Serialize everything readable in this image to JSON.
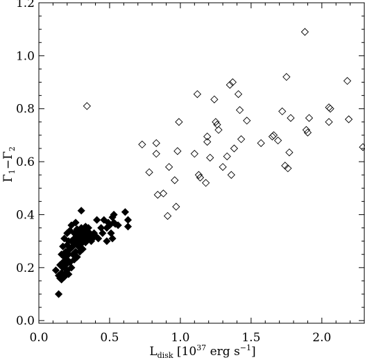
{
  "chart_data": {
    "type": "scatter",
    "xlabel": {
      "main": "L",
      "sub": "disk",
      "rest": " [10",
      "sup": "37",
      "units": " erg s",
      "sup2": "−1",
      "close": "]"
    },
    "ylabel": {
      "a": "Γ",
      "a_sub": "1",
      "dash": "−",
      "b": "Γ",
      "b_sub": "2"
    },
    "xlim": [
      0.0,
      2.3
    ],
    "ylim": [
      -0.01,
      1.2
    ],
    "x_ticks": [
      0.0,
      0.5,
      1.0,
      1.5,
      2.0
    ],
    "x_tick_labels": [
      "0.0",
      "0.5",
      "1.0",
      "1.5",
      "2.0"
    ],
    "y_ticks": [
      0.0,
      0.2,
      0.4,
      0.6,
      0.8,
      1.0,
      1.2
    ],
    "y_tick_labels": [
      "0.0",
      "0.2",
      "0.4",
      "0.6",
      "0.8",
      "1.0",
      "1.2"
    ],
    "grid": false,
    "legend": "none",
    "series": [
      {
        "marker": "diamond-open",
        "color": "#000000",
        "points": [
          [
            0.34,
            0.81
          ],
          [
            0.73,
            0.665
          ],
          [
            0.78,
            0.56
          ],
          [
            0.83,
            0.67
          ],
          [
            0.83,
            0.63
          ],
          [
            0.84,
            0.475
          ],
          [
            0.88,
            0.48
          ],
          [
            0.91,
            0.395
          ],
          [
            0.92,
            0.58
          ],
          [
            0.96,
            0.53
          ],
          [
            0.97,
            0.43
          ],
          [
            0.98,
            0.64
          ],
          [
            0.99,
            0.75
          ],
          [
            1.1,
            0.63
          ],
          [
            1.12,
            0.855
          ],
          [
            1.13,
            0.55
          ],
          [
            1.14,
            0.54
          ],
          [
            1.18,
            0.52
          ],
          [
            1.19,
            0.695
          ],
          [
            1.19,
            0.675
          ],
          [
            1.21,
            0.615
          ],
          [
            1.24,
            0.835
          ],
          [
            1.25,
            0.75
          ],
          [
            1.26,
            0.74
          ],
          [
            1.27,
            0.72
          ],
          [
            1.3,
            0.58
          ],
          [
            1.33,
            0.62
          ],
          [
            1.35,
            0.89
          ],
          [
            1.36,
            0.55
          ],
          [
            1.37,
            0.9
          ],
          [
            1.38,
            0.65
          ],
          [
            1.41,
            0.855
          ],
          [
            1.42,
            0.795
          ],
          [
            1.43,
            0.685
          ],
          [
            1.47,
            0.755
          ],
          [
            1.57,
            0.67
          ],
          [
            1.65,
            0.695
          ],
          [
            1.66,
            0.7
          ],
          [
            1.69,
            0.68
          ],
          [
            1.72,
            0.79
          ],
          [
            1.74,
            0.585
          ],
          [
            1.75,
            0.92
          ],
          [
            1.76,
            0.575
          ],
          [
            1.77,
            0.635
          ],
          [
            1.78,
            0.765
          ],
          [
            1.88,
            1.09
          ],
          [
            1.89,
            0.72
          ],
          [
            1.9,
            0.71
          ],
          [
            1.91,
            0.765
          ],
          [
            2.05,
            0.805
          ],
          [
            2.06,
            0.8
          ],
          [
            2.05,
            0.75
          ],
          [
            2.18,
            0.905
          ],
          [
            2.19,
            0.76
          ],
          [
            2.29,
            0.655
          ]
        ]
      },
      {
        "marker": "diamond-filled",
        "color": "#000000",
        "points": [
          [
            0.12,
            0.19
          ],
          [
            0.14,
            0.1
          ],
          [
            0.14,
            0.17
          ],
          [
            0.15,
            0.16
          ],
          [
            0.15,
            0.21
          ],
          [
            0.16,
            0.18
          ],
          [
            0.16,
            0.25
          ],
          [
            0.16,
            0.155
          ],
          [
            0.17,
            0.22
          ],
          [
            0.17,
            0.28
          ],
          [
            0.17,
            0.2
          ],
          [
            0.18,
            0.165
          ],
          [
            0.18,
            0.24
          ],
          [
            0.18,
            0.31
          ],
          [
            0.19,
            0.18
          ],
          [
            0.19,
            0.26
          ],
          [
            0.19,
            0.21
          ],
          [
            0.2,
            0.33
          ],
          [
            0.2,
            0.23
          ],
          [
            0.2,
            0.19
          ],
          [
            0.2,
            0.285
          ],
          [
            0.21,
            0.25
          ],
          [
            0.21,
            0.3
          ],
          [
            0.21,
            0.175
          ],
          [
            0.22,
            0.34
          ],
          [
            0.22,
            0.27
          ],
          [
            0.22,
            0.22
          ],
          [
            0.23,
            0.36
          ],
          [
            0.23,
            0.3
          ],
          [
            0.23,
            0.2
          ],
          [
            0.24,
            0.28
          ],
          [
            0.24,
            0.25
          ],
          [
            0.25,
            0.33
          ],
          [
            0.25,
            0.31
          ],
          [
            0.25,
            0.23
          ],
          [
            0.26,
            0.37
          ],
          [
            0.26,
            0.29
          ],
          [
            0.26,
            0.26
          ],
          [
            0.27,
            0.32
          ],
          [
            0.27,
            0.24
          ],
          [
            0.27,
            0.345
          ],
          [
            0.28,
            0.3
          ],
          [
            0.28,
            0.28
          ],
          [
            0.29,
            0.33
          ],
          [
            0.29,
            0.31
          ],
          [
            0.29,
            0.26
          ],
          [
            0.3,
            0.415
          ],
          [
            0.3,
            0.35
          ],
          [
            0.3,
            0.29
          ],
          [
            0.31,
            0.32
          ],
          [
            0.31,
            0.3
          ],
          [
            0.31,
            0.27
          ],
          [
            0.32,
            0.34
          ],
          [
            0.32,
            0.31
          ],
          [
            0.33,
            0.355
          ],
          [
            0.33,
            0.325
          ],
          [
            0.33,
            0.295
          ],
          [
            0.34,
            0.33
          ],
          [
            0.34,
            0.305
          ],
          [
            0.35,
            0.35
          ],
          [
            0.35,
            0.31
          ],
          [
            0.36,
            0.33
          ],
          [
            0.37,
            0.32
          ],
          [
            0.37,
            0.3
          ],
          [
            0.38,
            0.31
          ],
          [
            0.39,
            0.33
          ],
          [
            0.4,
            0.32
          ],
          [
            0.41,
            0.38
          ],
          [
            0.42,
            0.31
          ],
          [
            0.44,
            0.35
          ],
          [
            0.45,
            0.33
          ],
          [
            0.46,
            0.38
          ],
          [
            0.48,
            0.3
          ],
          [
            0.48,
            0.35
          ],
          [
            0.49,
            0.37
          ],
          [
            0.5,
            0.36
          ],
          [
            0.51,
            0.33
          ],
          [
            0.52,
            0.39
          ],
          [
            0.52,
            0.31
          ],
          [
            0.53,
            0.37
          ],
          [
            0.54,
            0.365
          ],
          [
            0.56,
            0.36
          ],
          [
            0.61,
            0.41
          ],
          [
            0.63,
            0.38
          ],
          [
            0.63,
            0.355
          ],
          [
            0.53,
            0.4
          ]
        ]
      }
    ]
  }
}
